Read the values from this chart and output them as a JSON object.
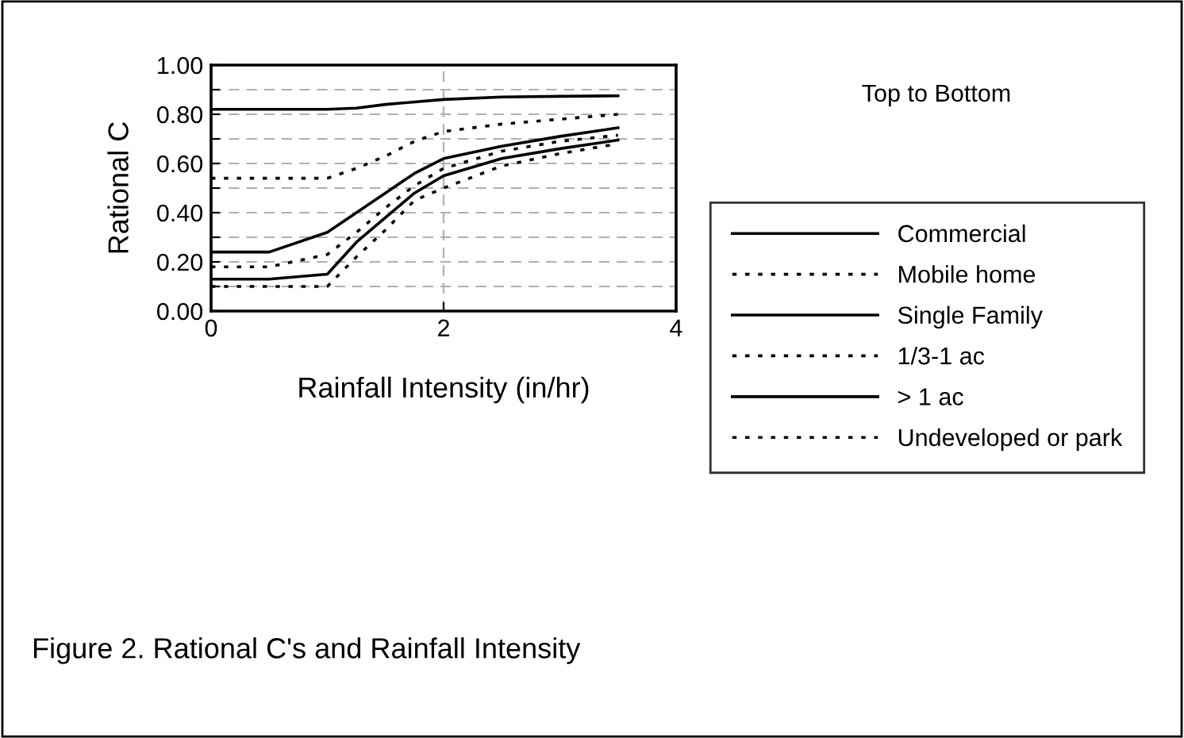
{
  "chart_data": {
    "type": "line",
    "xlabel": "Rainfall Intensity (in/hr)",
    "ylabel": "Rational C",
    "legend_title": "Top to Bottom",
    "annotations": [
      "Figure 2. Rational C's and Rainfall Intensity"
    ],
    "x": [
      0,
      0.5,
      1,
      1.25,
      1.5,
      1.75,
      2,
      2.5,
      3,
      3.5
    ],
    "series": [
      {
        "name": "Commercial",
        "color": "#000000",
        "line_style": "solid",
        "values": [
          0.82,
          0.82,
          0.82,
          0.825,
          0.84,
          0.85,
          0.86,
          0.87,
          0.873,
          0.875
        ]
      },
      {
        "name": "Mobile home",
        "color": "#000000",
        "line_style": "dashed",
        "values": [
          0.54,
          0.54,
          0.54,
          0.58,
          0.63,
          0.69,
          0.73,
          0.76,
          0.78,
          0.8
        ]
      },
      {
        "name": "Single Family",
        "color": "#000000",
        "line_style": "solid",
        "values": [
          0.24,
          0.24,
          0.32,
          0.4,
          0.48,
          0.56,
          0.62,
          0.67,
          0.71,
          0.745
        ]
      },
      {
        "name": "1/3-1 ac",
        "color": "#000000",
        "line_style": "dashed",
        "values": [
          0.18,
          0.18,
          0.23,
          0.32,
          0.42,
          0.51,
          0.58,
          0.65,
          0.69,
          0.715
        ]
      },
      {
        "name": "> 1 ac",
        "color": "#000000",
        "line_style": "solid",
        "values": [
          0.13,
          0.13,
          0.15,
          0.28,
          0.38,
          0.48,
          0.55,
          0.62,
          0.66,
          0.695
        ]
      },
      {
        "name": "Undeveloped or park",
        "color": "#000000",
        "line_style": "dashed",
        "values": [
          0.1,
          0.1,
          0.1,
          0.22,
          0.33,
          0.45,
          0.5,
          0.59,
          0.64,
          0.68
        ]
      }
    ],
    "xlim": [
      0,
      4
    ],
    "xticks": [
      0,
      2,
      4
    ],
    "ylim": [
      0,
      1
    ],
    "yticks": [
      {
        "value": 0,
        "label": "0.00"
      },
      {
        "value": 0.1,
        "label": null
      },
      {
        "value": 0.2,
        "label": "0.20"
      },
      {
        "value": 0.3,
        "label": null
      },
      {
        "value": 0.4,
        "label": "0.40"
      },
      {
        "value": 0.5,
        "label": null
      },
      {
        "value": 0.6,
        "label": "0.60"
      },
      {
        "value": 0.7,
        "label": null
      },
      {
        "value": 0.8,
        "label": "0.80"
      },
      {
        "value": 0.9,
        "label": null
      },
      {
        "value": 1,
        "label": "1.00"
      }
    ],
    "grid": true,
    "legend": "right",
    "marker": "none"
  }
}
